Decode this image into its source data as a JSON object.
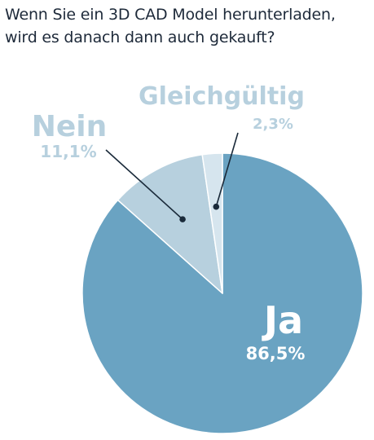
{
  "title": {
    "line1": "Wenn Sie ein 3D CAD Model herunterladen,",
    "line2": "wird es danach dann auch gekauft?"
  },
  "colors": {
    "ja": "#6aa3c2",
    "nein": "#b7d0de",
    "gleichgueltig": "#d6e5ee",
    "edge": "#ffffff",
    "leader": "#1a2a3a",
    "label_ja": "#ffffff",
    "label_light": "#b7d0de",
    "title": "#1e2a3a"
  },
  "chart_data": {
    "type": "pie",
    "title": "Wenn Sie ein 3D CAD Model herunterladen, wird es danach dann auch gekauft?",
    "start": "12 o'clock, clockwise",
    "slices": [
      {
        "label": "Ja",
        "value": 86.5,
        "value_label": "86,5%"
      },
      {
        "label": "Nein",
        "value": 11.1,
        "value_label": "11,1%"
      },
      {
        "label": "Gleichgültig",
        "value": 2.3,
        "value_label": "2,3%"
      }
    ]
  }
}
